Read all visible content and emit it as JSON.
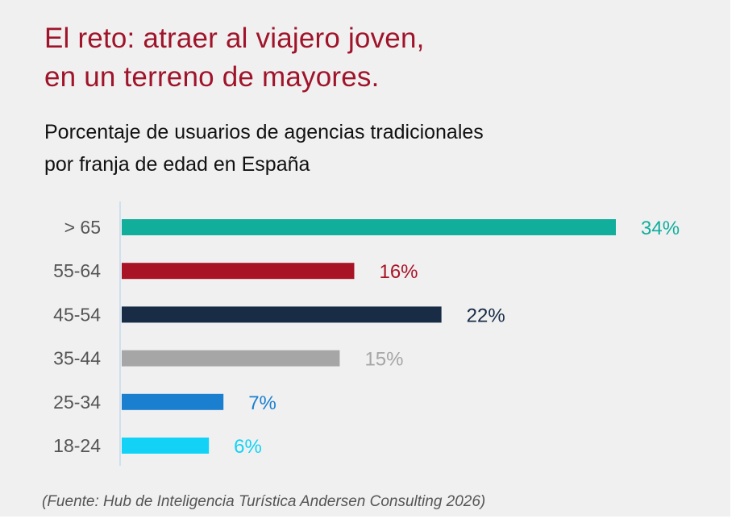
{
  "headline": {
    "line1": "El reto: atraer al viajero joven,",
    "line2": "en un terreno de mayores."
  },
  "subtitle": {
    "line1": "Porcentaje de usuarios de agencias tradicionales",
    "line2": "por franja de edad en España"
  },
  "source": "(Fuente: Hub de Inteligencia Turística Andersen Consulting 2026)",
  "chart_data": {
    "type": "bar",
    "orientation": "horizontal",
    "categories": [
      "> 65",
      "55-64",
      "45-54",
      "35-44",
      "25-34",
      "18-24"
    ],
    "values": [
      34,
      16,
      22,
      15,
      7,
      6
    ],
    "value_labels": [
      "34%",
      "16%",
      "22%",
      "15%",
      "7%",
      "6%"
    ],
    "colors": [
      "#12ae9c",
      "#a91326",
      "#182c45",
      "#a6a6a6",
      "#1a7fcf",
      "#12d3f5"
    ],
    "xlim": [
      0,
      34
    ],
    "grid": false,
    "legend": "none"
  },
  "colors": {
    "headline": "#a0142a",
    "background": "#f0f0f1",
    "axis": "#cfe0f0"
  }
}
